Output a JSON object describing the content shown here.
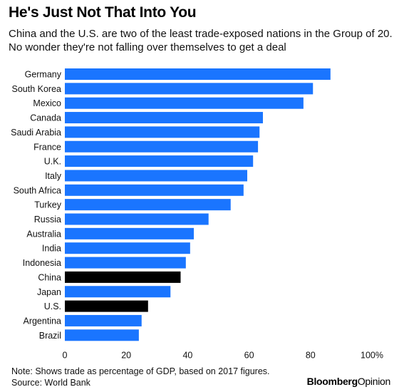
{
  "title": "He's Just Not That Into You",
  "subtitle": "China and the U.S. are two of the least trade-exposed nations in the Group of 20. No wonder they're not falling over themselves to get a deal",
  "note": "Note: Shows trade as percentage of GDP, based on 2017 figures.",
  "source": "Source: World Bank",
  "brand": {
    "part1": "Bloomberg",
    "part2": "Opinion"
  },
  "colors": {
    "default": "#1a75ff",
    "highlight": "#000000"
  },
  "chart_data": {
    "type": "bar",
    "orientation": "horizontal",
    "categories": [
      "Germany",
      "South Korea",
      "Mexico",
      "Canada",
      "Saudi Arabia",
      "France",
      "U.K.",
      "Italy",
      "South Africa",
      "Turkey",
      "Russia",
      "Australia",
      "India",
      "Indonesia",
      "China",
      "Japan",
      "U.S.",
      "Argentina",
      "Brazil"
    ],
    "values": [
      86.5,
      80.8,
      77.7,
      64.5,
      63.4,
      62.9,
      61.3,
      59.4,
      58.2,
      54.0,
      46.8,
      42.0,
      40.8,
      39.4,
      37.7,
      34.4,
      27.1,
      25.0,
      24.1
    ],
    "highlight": [
      "China",
      "U.S."
    ],
    "xlim": [
      0,
      100
    ],
    "xticks": [
      "0",
      "20",
      "40",
      "60",
      "80",
      "100%"
    ],
    "grid": false
  }
}
